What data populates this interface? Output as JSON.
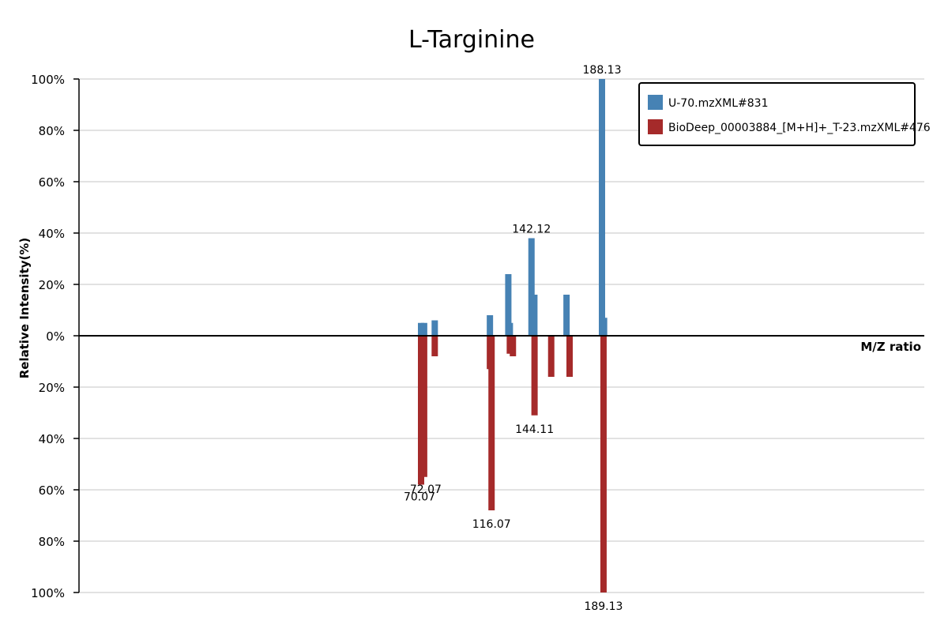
{
  "chart_data": {
    "type": "bar",
    "title": "L-Targinine",
    "xlabel": "M/Z ratio",
    "ylabel": "Relative Intensity(%)",
    "ylim": [
      -100,
      100
    ],
    "y_ticks": [
      100,
      80,
      60,
      40,
      20,
      0,
      -20,
      -40,
      -60,
      -80,
      -100
    ],
    "y_tick_labels": [
      "100%",
      "80%",
      "60%",
      "40%",
      "20%",
      "0%",
      "20%",
      "40%",
      "60%",
      "80%",
      "100%"
    ],
    "grid": true,
    "legend_position": "top-right",
    "series": [
      {
        "name": "U-70.mzXML#831",
        "color": "#4682b4",
        "direction": "up",
        "peaks": [
          {
            "mz": 70.07,
            "intensity": 5
          },
          {
            "mz": 72.07,
            "intensity": 5
          },
          {
            "mz": 79.0,
            "intensity": 6
          },
          {
            "mz": 115.0,
            "intensity": 8
          },
          {
            "mz": 127.0,
            "intensity": 24
          },
          {
            "mz": 128.0,
            "intensity": 5
          },
          {
            "mz": 142.12,
            "intensity": 38
          },
          {
            "mz": 144.0,
            "intensity": 16
          },
          {
            "mz": 165.0,
            "intensity": 16
          },
          {
            "mz": 188.13,
            "intensity": 100
          },
          {
            "mz": 189.5,
            "intensity": 7
          }
        ]
      },
      {
        "name": "BioDeep_00003884_[M+H]+_T-23.mzXML#476",
        "color": "#a52a2a",
        "direction": "down",
        "peaks": [
          {
            "mz": 70.07,
            "intensity": 58
          },
          {
            "mz": 72.07,
            "intensity": 55
          },
          {
            "mz": 79.0,
            "intensity": 8
          },
          {
            "mz": 115.0,
            "intensity": 13
          },
          {
            "mz": 116.07,
            "intensity": 68
          },
          {
            "mz": 128.0,
            "intensity": 7
          },
          {
            "mz": 130.0,
            "intensity": 8
          },
          {
            "mz": 144.11,
            "intensity": 31
          },
          {
            "mz": 155.0,
            "intensity": 16
          },
          {
            "mz": 167.0,
            "intensity": 16
          },
          {
            "mz": 189.13,
            "intensity": 100
          }
        ]
      }
    ],
    "annotations": [
      {
        "text": "188.13",
        "series": 0,
        "mz": 188.13
      },
      {
        "text": "142.12",
        "series": 0,
        "mz": 142.12
      },
      {
        "text": "144.11",
        "series": 1,
        "mz": 144.11
      },
      {
        "text": "72.07",
        "series": 1,
        "mz": 72.07
      },
      {
        "text": "70.07",
        "series": 1,
        "mz": 70.07
      },
      {
        "text": "116.07",
        "series": 1,
        "mz": 116.07
      },
      {
        "text": "189.13",
        "series": 1,
        "mz": 189.13
      }
    ]
  }
}
